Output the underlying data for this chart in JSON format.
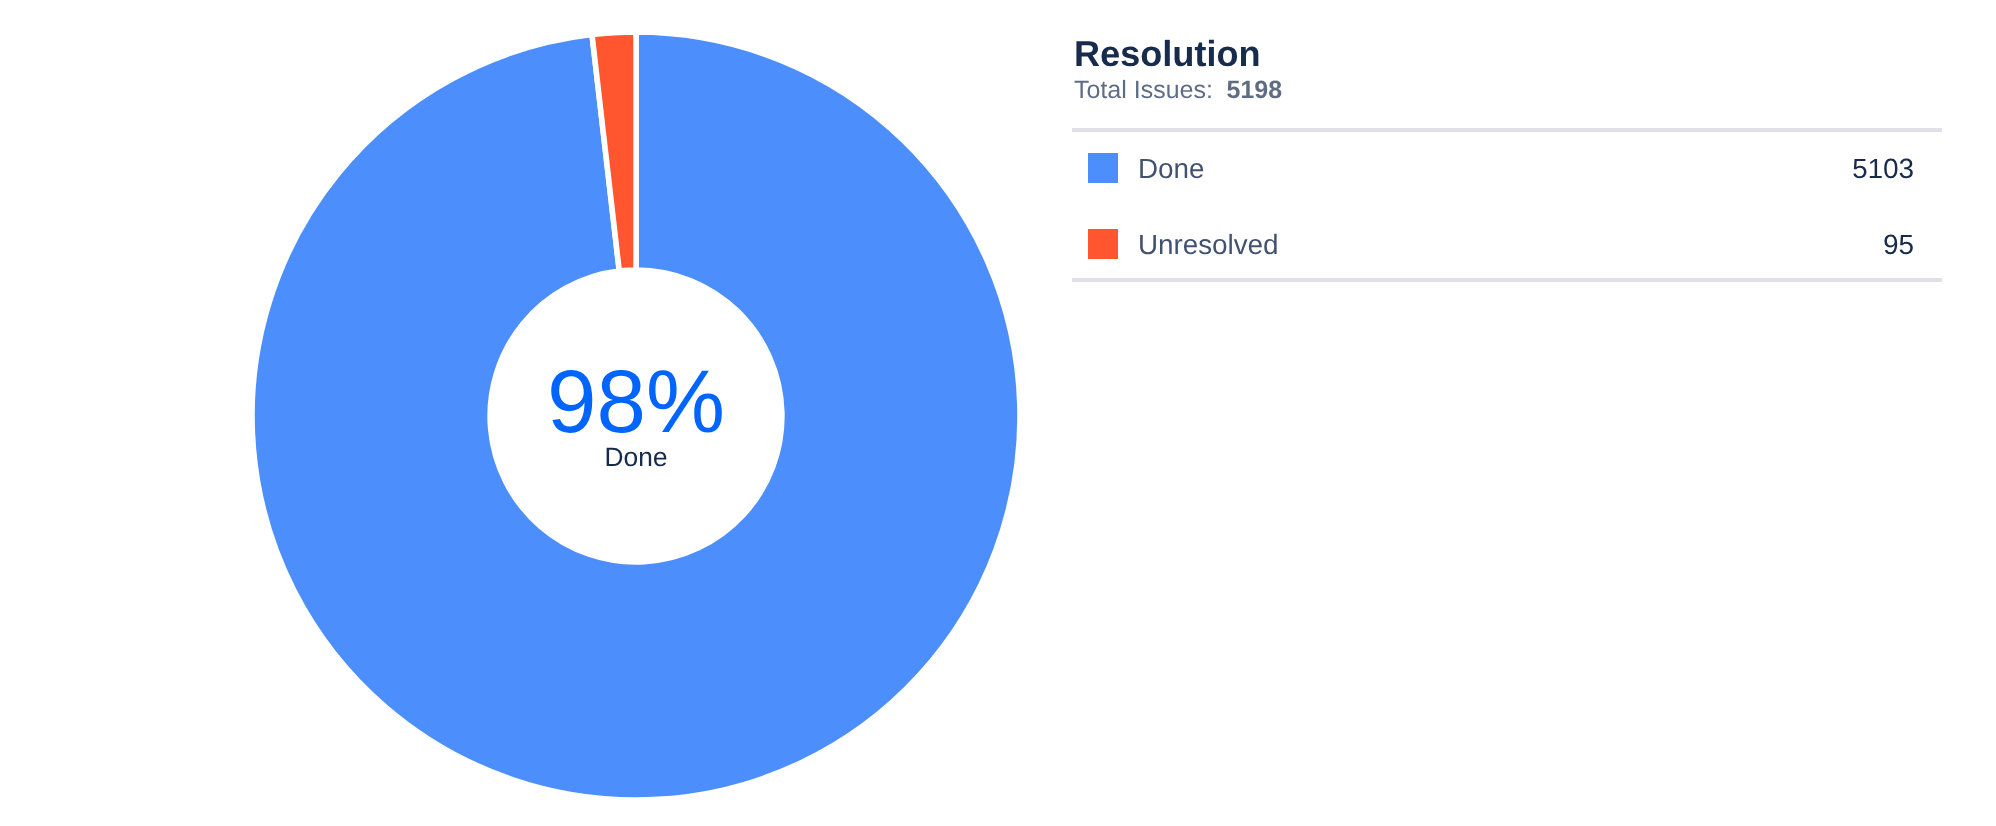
{
  "chart_data": {
    "type": "donut",
    "title": "Resolution",
    "subtitle": "Total Issues: 5198",
    "categories": [
      "Done",
      "Unresolved"
    ],
    "values": [
      5103,
      95
    ],
    "colors": [
      "#4c8ffc",
      "#ff5630"
    ],
    "annotations": [
      "98%",
      "Done"
    ],
    "data_labels": true,
    "legend": "top right"
  }
}
